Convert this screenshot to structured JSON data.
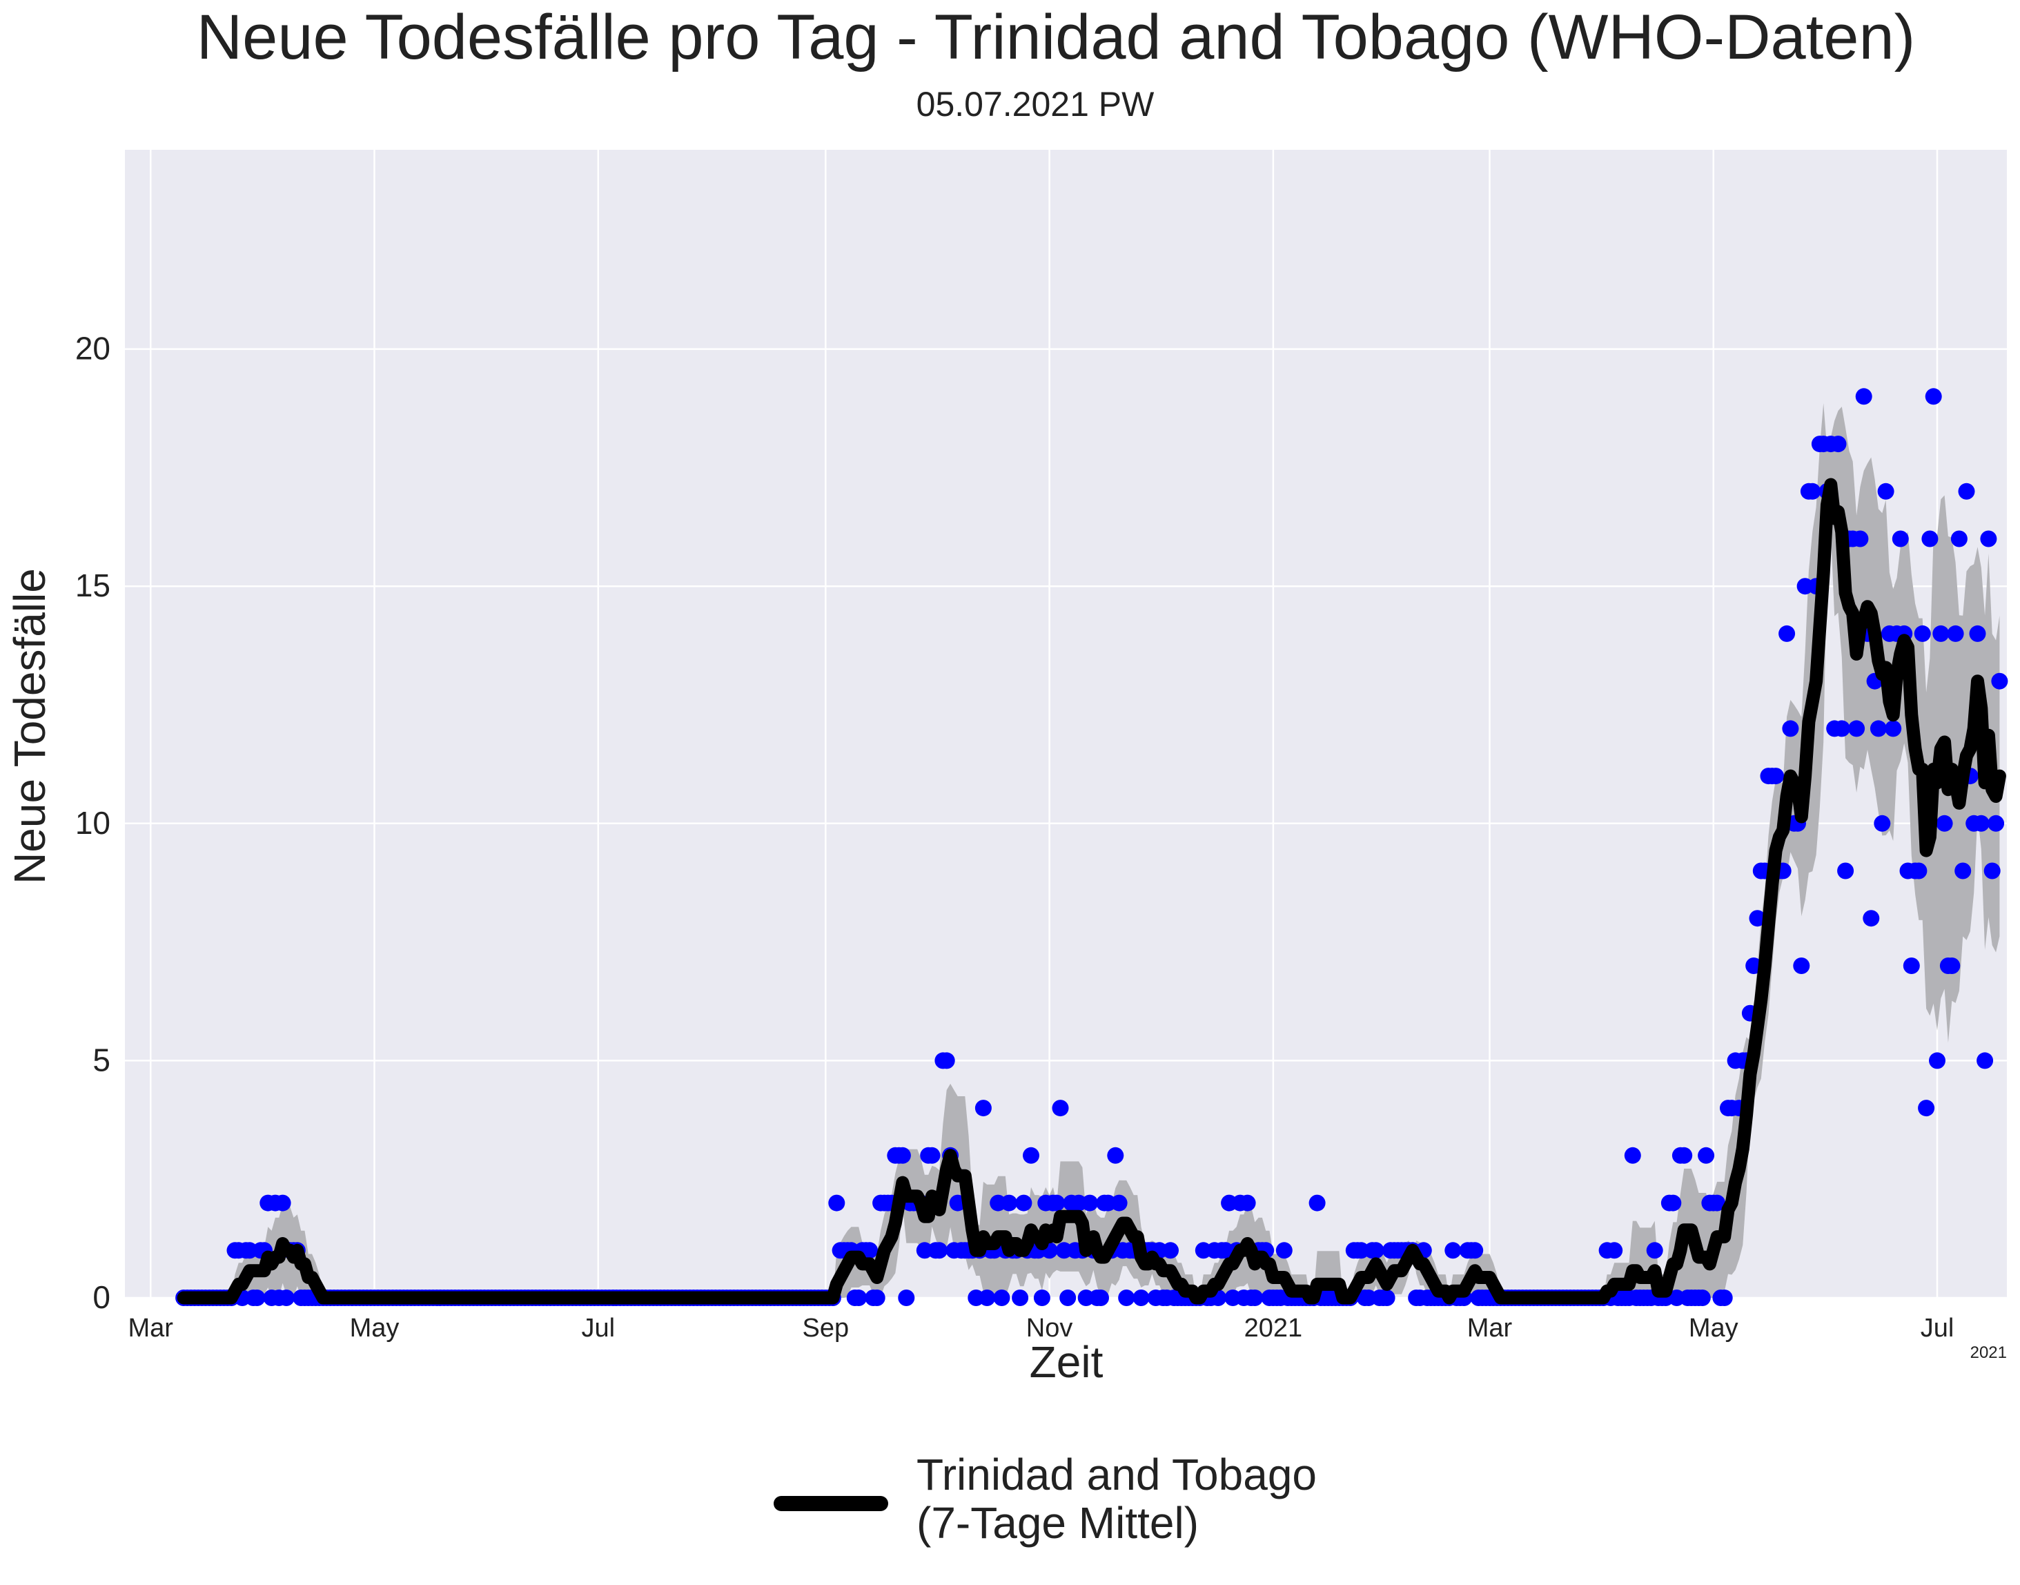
{
  "chart_data": {
    "type": "line",
    "title": "Neue Todesfälle pro Tag - Trinidad and Tobago (WHO-Daten)",
    "subtitle": "05.07.2021 PW",
    "xlabel": "Zeit",
    "ylabel": "Neue Todesfälle",
    "x_range": [
      "2020-02-23",
      "2021-07-20"
    ],
    "ylim": [
      0,
      24.2
    ],
    "x_ticks": [
      {
        "date": "2020-03-01",
        "label": "Mar"
      },
      {
        "date": "2020-05-01",
        "label": "May"
      },
      {
        "date": "2020-07-01",
        "label": "Jul"
      },
      {
        "date": "2020-09-01",
        "label": "Sep"
      },
      {
        "date": "2020-11-01",
        "label": "Nov"
      },
      {
        "date": "2021-01-01",
        "label": "2021"
      },
      {
        "date": "2021-03-01",
        "label": "Mar"
      },
      {
        "date": "2021-05-01",
        "label": "May"
      },
      {
        "date": "2021-07-01",
        "label": "Jul"
      }
    ],
    "x_offset_label": "2021",
    "y_ticks": [
      0,
      5,
      10,
      15,
      20
    ],
    "grid": true,
    "legend_position": "bottom-center",
    "colors": {
      "points": "#0000ff",
      "mean_line": "#000000",
      "band": "#b3b3b7",
      "plot_background": "#eaeaf2",
      "grid": "#ffffff"
    },
    "start_date": "2020-03-10",
    "daily_deaths": [
      0,
      0,
      0,
      0,
      0,
      0,
      0,
      0,
      0,
      0,
      0,
      0,
      0,
      0,
      1,
      1,
      0,
      1,
      1,
      0,
      0,
      1,
      1,
      2,
      0,
      2,
      0,
      2,
      0,
      1,
      1,
      1,
      0,
      0,
      0,
      0,
      0,
      0,
      0,
      0,
      0,
      0,
      0,
      0,
      0,
      0,
      0,
      0,
      0,
      0,
      0,
      0,
      0,
      0,
      0,
      0,
      0,
      0,
      0,
      0,
      0,
      0,
      0,
      0,
      0,
      0,
      0,
      0,
      0,
      0,
      0,
      0,
      0,
      0,
      0,
      0,
      0,
      0,
      0,
      0,
      0,
      0,
      0,
      0,
      0,
      0,
      0,
      0,
      0,
      0,
      0,
      0,
      0,
      0,
      0,
      0,
      0,
      0,
      0,
      0,
      0,
      0,
      0,
      0,
      0,
      0,
      0,
      0,
      0,
      0,
      0,
      0,
      0,
      0,
      0,
      0,
      0,
      0,
      0,
      0,
      0,
      0,
      0,
      0,
      0,
      0,
      0,
      0,
      0,
      0,
      0,
      0,
      0,
      0,
      0,
      0,
      0,
      0,
      0,
      0,
      0,
      0,
      0,
      0,
      0,
      0,
      0,
      0,
      0,
      0,
      0,
      0,
      0,
      0,
      0,
      0,
      0,
      0,
      0,
      0,
      0,
      0,
      0,
      0,
      0,
      0,
      0,
      0,
      0,
      0,
      0,
      0,
      0,
      0,
      0,
      0,
      0,
      0,
      2,
      1,
      1,
      1,
      1,
      0,
      0,
      1,
      1,
      1,
      0,
      0,
      2,
      2,
      2,
      2,
      3,
      3,
      3,
      0,
      2,
      2,
      2,
      2,
      1,
      3,
      3,
      1,
      1,
      5,
      5,
      3,
      1,
      2,
      1,
      1,
      1,
      1,
      0,
      1,
      4,
      0,
      1,
      1,
      2,
      0,
      1,
      2,
      1,
      1,
      0,
      2,
      1,
      3,
      1,
      1,
      0,
      2,
      1,
      2,
      2,
      4,
      1,
      0,
      2,
      1,
      2,
      1,
      0,
      2,
      1,
      0,
      0,
      2,
      2,
      1,
      3,
      2,
      1,
      0,
      1,
      1,
      1,
      0,
      1,
      1,
      1,
      0,
      1,
      0,
      0,
      1,
      0,
      0,
      0,
      0,
      0,
      0,
      0,
      0,
      1,
      0,
      0,
      1,
      0,
      1,
      1,
      2,
      0,
      1,
      2,
      0,
      2,
      0,
      0,
      1,
      1,
      1,
      0,
      0,
      0,
      0,
      1,
      0,
      0,
      0,
      0,
      0,
      0,
      0,
      0,
      2,
      0,
      0,
      0,
      0,
      0,
      0,
      0,
      0,
      0,
      1,
      1,
      1,
      0,
      0,
      1,
      1,
      0,
      0,
      0,
      1,
      1,
      1,
      1,
      1,
      1,
      1,
      0,
      0,
      1,
      0,
      0,
      0,
      0,
      0,
      0,
      0,
      1,
      0,
      0,
      0,
      1,
      1,
      1,
      0,
      0,
      0,
      0,
      0,
      0,
      0,
      0,
      0,
      0,
      0,
      0,
      0,
      0,
      0,
      0,
      0,
      0,
      0,
      0,
      0,
      0,
      0,
      0,
      0,
      0,
      0,
      0,
      0,
      0,
      0,
      0,
      0,
      0,
      0,
      1,
      0,
      1,
      0,
      0,
      0,
      0,
      3,
      0,
      0,
      0,
      0,
      0,
      1,
      0,
      0,
      0,
      2,
      2,
      0,
      3,
      3,
      0,
      0,
      0,
      0,
      0,
      3,
      2,
      2,
      2,
      0,
      0,
      4,
      4,
      5,
      4,
      5,
      5,
      6,
      7,
      8,
      9,
      9,
      11,
      11,
      11,
      9,
      9,
      14,
      12,
      10,
      10,
      7,
      15,
      17,
      17,
      15,
      18,
      18,
      17,
      18,
      12,
      18,
      12,
      9,
      16,
      16,
      12,
      16,
      19,
      14,
      8,
      13,
      12,
      10,
      17,
      14,
      12,
      14,
      16,
      14,
      9,
      7,
      9,
      9,
      14,
      4,
      16,
      19,
      5,
      14,
      10,
      7,
      7,
      14,
      16,
      9,
      17,
      11,
      10,
      14,
      10,
      5,
      16,
      9,
      10,
      13
    ],
    "series": [
      {
        "name": "Trinidad and Tobago\n(7-Tage Mittel)",
        "name_lines": [
          "Trinidad and Tobago",
          "(7-Tage Mittel)"
        ]
      }
    ]
  }
}
